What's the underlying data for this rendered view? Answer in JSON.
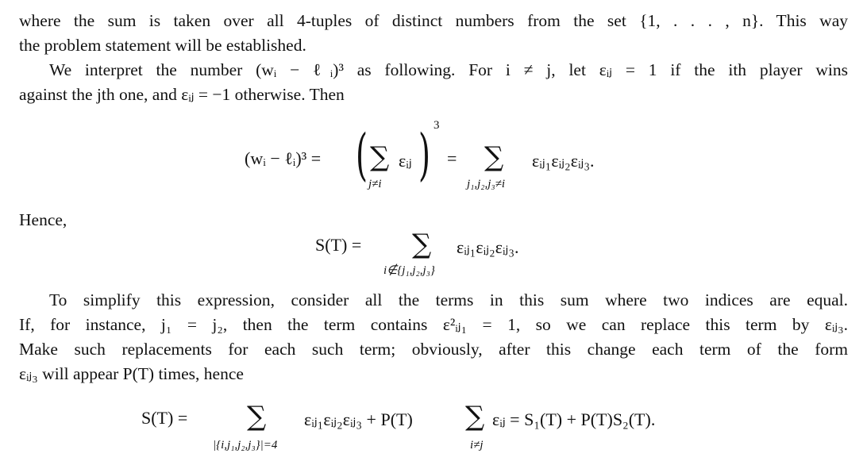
{
  "text": {
    "line1": "where the sum is taken over all 4-tuples of distinct numbers from the set {1, . . . , n}. This way",
    "line2": "the problem statement will be established.",
    "line3": "We interpret the number (wᵢ − ℓᵢ)³ as following. For i ≠ j, let εᵢⱼ = 1 if the ith player wins",
    "line4": "against the jth one, and εᵢⱼ = −1 otherwise. Then",
    "hence": "Hence,",
    "line5": "To simplify this expression, consider all the terms in this sum where two indices are equal.",
    "line6": "If, for instance, j₁ = j₂, then the term contains ε²ᵢⱼ₁ = 1, so we can replace this term by εᵢⱼ₃.",
    "line7": "Make such replacements for each such term; obviously, after this change each term of the form",
    "line8": "εᵢⱼ₃ will appear P(T) times, hence"
  },
  "eq1": {
    "lhs": "(wᵢ − ℓᵢ)³ =",
    "left_paren": "(",
    "inner_sum": "∑",
    "inner_term": "εᵢⱼ",
    "inner_sub": "j≠i",
    "right_paren": ")",
    "power": "3",
    "equals": "=",
    "sum": "∑",
    "sum_sub": "j₁,j₂,j₃≠i",
    "term": "εᵢⱼ₁εᵢⱼ₂εᵢⱼ₃."
  },
  "eq2": {
    "lhs": "S(T) =",
    "sum": "∑",
    "sum_sub": "i∉{j₁,j₂,j₃}",
    "term": "εᵢⱼ₁εᵢⱼ₂εᵢⱼ₃."
  },
  "eq3": {
    "lhs": "S(T) =",
    "sum1": "∑",
    "sum1_sub": "|{i,j₁,j₂,j₃}|=4",
    "term1": "εᵢⱼ₁εᵢⱼ₂εᵢⱼ₃ + P(T)",
    "sum2": "∑",
    "sum2_sub": "i≠j",
    "term2": "εᵢⱼ = S₁(T) + P(T)S₂(T)."
  }
}
